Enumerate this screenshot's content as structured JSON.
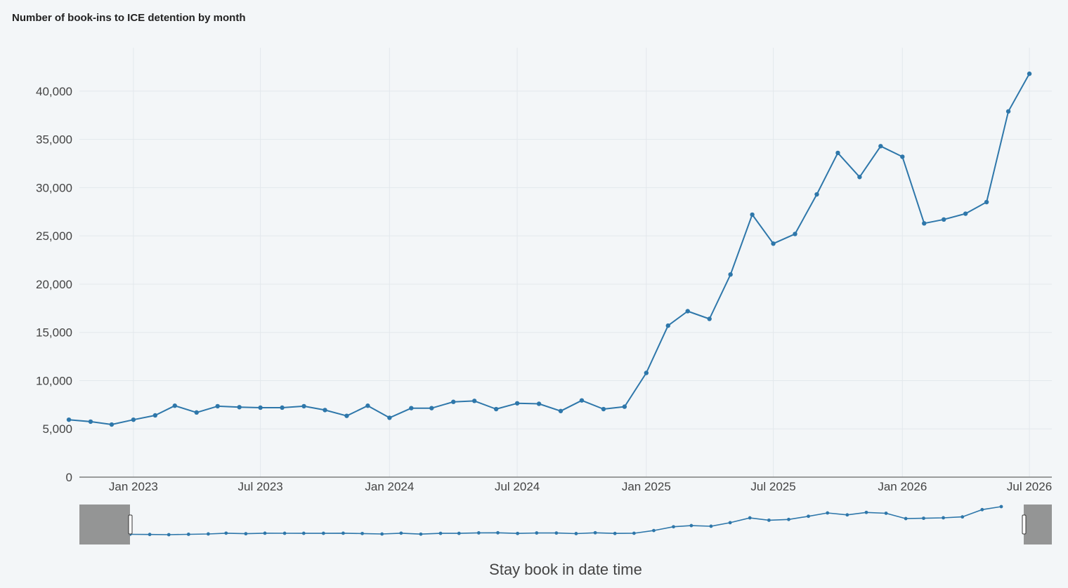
{
  "chart_data": {
    "type": "line",
    "title": "Number of book-ins to ICE detention by month",
    "xlabel": "Stay book in date time",
    "ylabel": "",
    "ylim": [
      0,
      44500
    ],
    "yticks": [
      0,
      5000,
      10000,
      15000,
      20000,
      25000,
      30000,
      35000,
      40000
    ],
    "ytick_labels": [
      "0",
      "5,000",
      "10,000",
      "15,000",
      "20,000",
      "25,000",
      "30,000",
      "35,000",
      "40,000"
    ],
    "xlim": [
      "2022-10-16",
      "2026-08-02"
    ],
    "xticks": [
      "2023-01-01",
      "2023-07-01",
      "2024-01-01",
      "2024-07-01",
      "2025-01-01",
      "2025-07-01",
      "2026-01-01",
      "2026-07-01"
    ],
    "xtick_labels": [
      "Jan 2023",
      "Jul 2023",
      "Jan 2024",
      "Jul 2024",
      "Jan 2025",
      "Jul 2025",
      "Jan 2026",
      "Jul 2026"
    ],
    "grid": true,
    "color": "#2e77aa",
    "range_slider": {
      "visible": true
    },
    "series": [
      {
        "name": "",
        "x": [
          "2022-10-01",
          "2022-11-01",
          "2022-12-01",
          "2023-01-01",
          "2023-02-01",
          "2023-03-01",
          "2023-04-01",
          "2023-05-01",
          "2023-06-01",
          "2023-07-01",
          "2023-08-01",
          "2023-09-01",
          "2023-10-01",
          "2023-11-01",
          "2023-12-01",
          "2024-01-01",
          "2024-02-01",
          "2024-03-01",
          "2024-04-01",
          "2024-05-01",
          "2024-06-01",
          "2024-07-01",
          "2024-08-01",
          "2024-09-01",
          "2024-10-01",
          "2024-11-01",
          "2024-12-01",
          "2025-01-01",
          "2025-02-01",
          "2025-03-01",
          "2025-04-01",
          "2025-05-01",
          "2025-06-01",
          "2025-07-01",
          "2025-08-01",
          "2025-09-01",
          "2025-10-01",
          "2025-11-01",
          "2025-12-01",
          "2026-01-01",
          "2026-02-01",
          "2026-03-01",
          "2026-04-01",
          "2026-05-01",
          "2026-06-01",
          "2026-07-01"
        ],
        "values": [
          5950,
          5750,
          5450,
          5950,
          6400,
          7400,
          6700,
          7350,
          7250,
          7200,
          7200,
          7350,
          6950,
          6350,
          7400,
          6150,
          7150,
          7150,
          7800,
          7900,
          7050,
          7650,
          7600,
          6850,
          7950,
          7050,
          7300,
          10800,
          15700,
          17200,
          16400,
          21000,
          27200,
          24200,
          25200,
          29300,
          33600,
          31100,
          34300,
          33200,
          26300,
          26700,
          27300,
          28500,
          37900,
          41800
        ]
      }
    ]
  }
}
